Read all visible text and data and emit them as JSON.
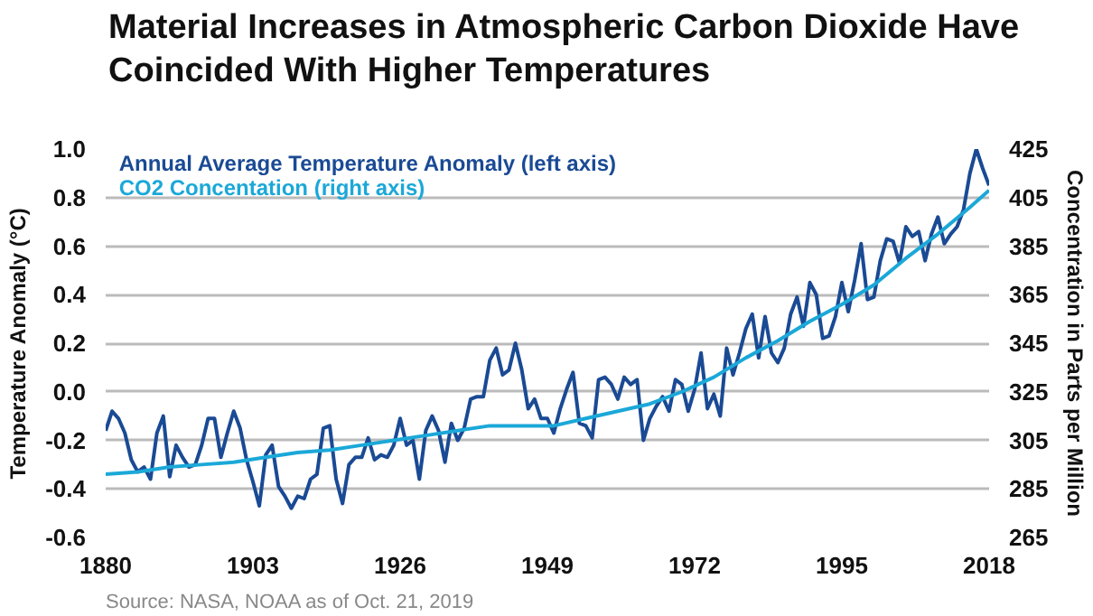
{
  "chart_data": {
    "type": "line",
    "title": "Material Increases in Atmospheric Carbon Dioxide Have Coincided With Higher Temperatures",
    "ylabel": "Temperature Anomaly (°C)",
    "y2label": "Concentration in Parts per Million",
    "annotations": [
      "Source: NASA, NOAA as of Oct. 21, 2019"
    ],
    "xlim": [
      1880,
      2018
    ],
    "xticks": [
      1880,
      1903,
      1926,
      1949,
      1972,
      1995,
      2018
    ],
    "ylim": [
      -0.6,
      1.0
    ],
    "yticks": [
      -0.6,
      -0.4,
      -0.2,
      {
        "value": 0,
        "label": "0.0"
      },
      0.2,
      0.4,
      0.6,
      0.8,
      {
        "value": 1,
        "label": "1.0"
      }
    ],
    "y2lim": [
      265,
      425
    ],
    "y2ticks": [
      265,
      285,
      305,
      325,
      345,
      365,
      385,
      405,
      425
    ],
    "grid": "y",
    "legend": "top left",
    "marker": "none",
    "line_style": "solid",
    "series": [
      {
        "name": "Annual Average Temperature Anomaly (left axis)",
        "color": "#1a4a94",
        "x": [
          1880,
          1881,
          1882,
          1883,
          1884,
          1885,
          1886,
          1887,
          1888,
          1889,
          1890,
          1891,
          1892,
          1893,
          1894,
          1895,
          1896,
          1897,
          1898,
          1899,
          1900,
          1901,
          1902,
          1903,
          1904,
          1905,
          1906,
          1907,
          1908,
          1909,
          1910,
          1911,
          1912,
          1913,
          1914,
          1915,
          1916,
          1917,
          1918,
          1919,
          1920,
          1921,
          1922,
          1923,
          1924,
          1925,
          1926,
          1927,
          1928,
          1929,
          1930,
          1931,
          1932,
          1933,
          1934,
          1935,
          1936,
          1937,
          1938,
          1939,
          1940,
          1941,
          1942,
          1943,
          1944,
          1945,
          1946,
          1947,
          1948,
          1949,
          1950,
          1951,
          1952,
          1953,
          1954,
          1955,
          1956,
          1957,
          1958,
          1959,
          1960,
          1961,
          1962,
          1963,
          1964,
          1965,
          1966,
          1967,
          1968,
          1969,
          1970,
          1971,
          1972,
          1973,
          1974,
          1975,
          1976,
          1977,
          1978,
          1979,
          1980,
          1981,
          1982,
          1983,
          1984,
          1985,
          1986,
          1987,
          1988,
          1989,
          1990,
          1991,
          1992,
          1993,
          1994,
          1995,
          1996,
          1997,
          1998,
          1999,
          2000,
          2001,
          2002,
          2003,
          2004,
          2005,
          2006,
          2007,
          2008,
          2009,
          2010,
          2011,
          2012,
          2013,
          2014,
          2015,
          2016,
          2017,
          2018
        ],
        "values": [
          -0.16,
          -0.08,
          -0.11,
          -0.17,
          -0.28,
          -0.33,
          -0.31,
          -0.36,
          -0.17,
          -0.1,
          -0.35,
          -0.22,
          -0.27,
          -0.31,
          -0.3,
          -0.22,
          -0.11,
          -0.11,
          -0.27,
          -0.17,
          -0.08,
          -0.15,
          -0.28,
          -0.37,
          -0.47,
          -0.26,
          -0.22,
          -0.39,
          -0.43,
          -0.48,
          -0.43,
          -0.44,
          -0.36,
          -0.34,
          -0.15,
          -0.14,
          -0.36,
          -0.46,
          -0.3,
          -0.27,
          -0.27,
          -0.19,
          -0.28,
          -0.26,
          -0.27,
          -0.22,
          -0.11,
          -0.22,
          -0.2,
          -0.36,
          -0.16,
          -0.1,
          -0.16,
          -0.29,
          -0.13,
          -0.2,
          -0.15,
          -0.03,
          -0.02,
          -0.02,
          0.13,
          0.18,
          0.07,
          0.09,
          0.2,
          0.09,
          -0.07,
          -0.03,
          -0.11,
          -0.11,
          -0.17,
          -0.07,
          0.01,
          0.08,
          -0.13,
          -0.14,
          -0.19,
          0.05,
          0.06,
          0.03,
          -0.03,
          0.06,
          0.03,
          0.05,
          -0.2,
          -0.11,
          -0.06,
          -0.02,
          -0.08,
          0.05,
          0.03,
          -0.08,
          0.01,
          0.16,
          -0.07,
          -0.01,
          -0.1,
          0.18,
          0.07,
          0.16,
          0.26,
          0.32,
          0.14,
          0.31,
          0.16,
          0.12,
          0.18,
          0.32,
          0.39,
          0.27,
          0.45,
          0.4,
          0.22,
          0.23,
          0.31,
          0.45,
          0.33,
          0.46,
          0.61,
          0.38,
          0.39,
          0.54,
          0.63,
          0.62,
          0.53,
          0.68,
          0.64,
          0.66,
          0.54,
          0.65,
          0.72,
          0.61,
          0.65,
          0.68,
          0.75,
          0.9,
          1.0,
          0.92,
          0.85
        ]
      },
      {
        "name": "CO2 Concentation (right axis)",
        "color": "#1ba8d8",
        "axis": "y2",
        "x": [
          1880,
          1885,
          1890,
          1895,
          1900,
          1905,
          1910,
          1915,
          1920,
          1925,
          1930,
          1935,
          1940,
          1945,
          1950,
          1955,
          1960,
          1965,
          1970,
          1975,
          1980,
          1985,
          1990,
          1995,
          2000,
          2005,
          2010,
          2015,
          2018
        ],
        "values": [
          291,
          292,
          294,
          295,
          296,
          298,
          300,
          301,
          303,
          305,
          307,
          309,
          311,
          311,
          311,
          314,
          317,
          320,
          325,
          331,
          339,
          346,
          354,
          361,
          369,
          380,
          390,
          401,
          408
        ]
      }
    ]
  }
}
